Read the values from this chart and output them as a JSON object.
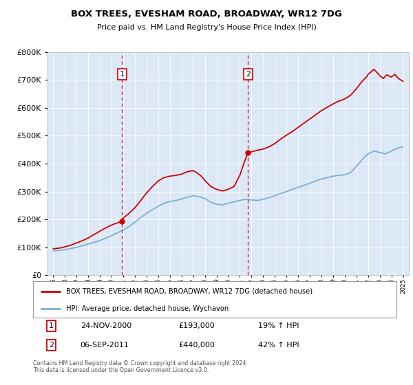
{
  "title": "BOX TREES, EVESHAM ROAD, BROADWAY, WR12 7DG",
  "subtitle": "Price paid vs. HM Land Registry's House Price Index (HPI)",
  "legend_label_red": "BOX TREES, EVESHAM ROAD, BROADWAY, WR12 7DG (detached house)",
  "legend_label_blue": "HPI: Average price, detached house, Wychavon",
  "annotation1_label": "1",
  "annotation1_date": "24-NOV-2000",
  "annotation1_price": "£193,000",
  "annotation1_hpi": "19% ↑ HPI",
  "annotation2_label": "2",
  "annotation2_date": "06-SEP-2011",
  "annotation2_price": "£440,000",
  "annotation2_hpi": "42% ↑ HPI",
  "footer": "Contains HM Land Registry data © Crown copyright and database right 2024.\nThis data is licensed under the Open Government Licence v3.0.",
  "vline1_x": 2000.9,
  "vline2_x": 2011.7,
  "marker1_x": 2000.9,
  "marker1_y": 193000,
  "marker2_x": 2011.7,
  "marker2_y": 440000,
  "ylim": [
    0,
    800000
  ],
  "xlim": [
    1994.5,
    2025.5
  ],
  "plot_bg": "#dce8f5",
  "red_color": "#cc0000",
  "blue_color": "#7ab0d4",
  "grid_color": "#ffffff",
  "years_hpi": [
    1995,
    1995.5,
    1996,
    1996.5,
    1997,
    1997.5,
    1998,
    1998.5,
    1999,
    1999.5,
    2000,
    2000.5,
    2001,
    2001.5,
    2002,
    2002.5,
    2003,
    2003.5,
    2004,
    2004.5,
    2005,
    2005.5,
    2006,
    2006.5,
    2007,
    2007.5,
    2008,
    2008.5,
    2009,
    2009.5,
    2010,
    2010.5,
    2011,
    2011.5,
    2012,
    2012.5,
    2013,
    2013.5,
    2014,
    2014.5,
    2015,
    2015.5,
    2016,
    2016.5,
    2017,
    2017.5,
    2018,
    2018.5,
    2019,
    2019.5,
    2020,
    2020.5,
    2021,
    2021.5,
    2022,
    2022.5,
    2023,
    2023.5,
    2024,
    2024.5,
    2025
  ],
  "vals_hpi": [
    88000,
    89000,
    92000,
    96000,
    100000,
    106000,
    112000,
    118000,
    125000,
    133000,
    142000,
    152000,
    163000,
    175000,
    190000,
    207000,
    222000,
    235000,
    247000,
    258000,
    264000,
    268000,
    273000,
    280000,
    285000,
    282000,
    275000,
    262000,
    255000,
    252000,
    258000,
    263000,
    268000,
    272000,
    270000,
    268000,
    272000,
    278000,
    285000,
    293000,
    300000,
    308000,
    315000,
    322000,
    330000,
    338000,
    345000,
    350000,
    355000,
    358000,
    360000,
    368000,
    390000,
    415000,
    435000,
    445000,
    440000,
    435000,
    445000,
    455000,
    460000
  ],
  "years_red": [
    1995,
    1995.5,
    1996,
    1996.5,
    1997,
    1997.5,
    1998,
    1998.5,
    1999,
    1999.5,
    2000,
    2000.5,
    2000.9,
    2001,
    2001.5,
    2002,
    2002.5,
    2003,
    2003.5,
    2004,
    2004.5,
    2005,
    2005.5,
    2006,
    2006.3,
    2006.6,
    2007,
    2007.3,
    2007.7,
    2008,
    2008.5,
    2009,
    2009.5,
    2010,
    2010.5,
    2011,
    2011.3,
    2011.7,
    2012,
    2012.5,
    2013,
    2013.5,
    2014,
    2014.5,
    2015,
    2015.5,
    2016,
    2016.5,
    2017,
    2017.5,
    2018,
    2018.5,
    2019,
    2019.5,
    2020,
    2020.5,
    2021,
    2021.3,
    2021.6,
    2021.9,
    2022,
    2022.3,
    2022.5,
    2022.8,
    2023,
    2023.3,
    2023.6,
    2024,
    2024.3,
    2024.6,
    2025
  ],
  "vals_red": [
    95000,
    97000,
    102000,
    108000,
    116000,
    124000,
    134000,
    146000,
    158000,
    170000,
    180000,
    188000,
    193000,
    205000,
    222000,
    242000,
    268000,
    295000,
    318000,
    338000,
    350000,
    355000,
    358000,
    362000,
    368000,
    372000,
    375000,
    368000,
    355000,
    340000,
    318000,
    308000,
    302000,
    308000,
    318000,
    358000,
    395000,
    440000,
    442000,
    448000,
    452000,
    460000,
    472000,
    488000,
    502000,
    515000,
    530000,
    545000,
    560000,
    575000,
    590000,
    602000,
    614000,
    624000,
    632000,
    645000,
    668000,
    685000,
    700000,
    712000,
    720000,
    730000,
    738000,
    725000,
    715000,
    705000,
    718000,
    710000,
    720000,
    705000,
    695000
  ]
}
